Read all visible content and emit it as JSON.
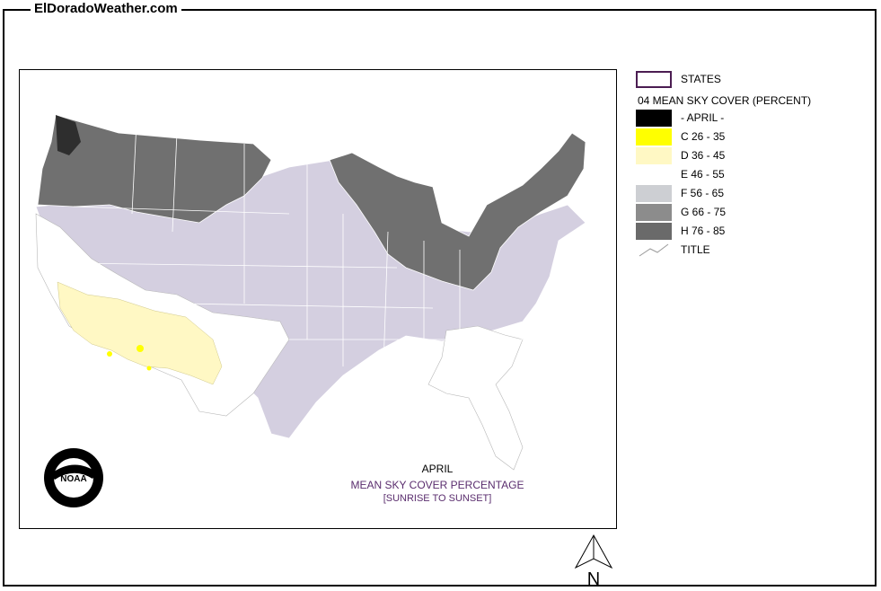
{
  "site": {
    "title": "ElDoradoWeather.com"
  },
  "map": {
    "caption_month": "APRIL",
    "caption_title": "MEAN SKY COVER PERCENTAGE",
    "caption_subtitle": "[SUNRISE TO SUNSET]",
    "logo_text": "NOAA",
    "north_label": "N"
  },
  "legend": {
    "states_label": "STATES",
    "heading": "04 MEAN SKY COVER (PERCENT)",
    "title_label": "TITLE",
    "classes": [
      {
        "label": "- APRIL -",
        "color": "#000000"
      },
      {
        "label": "C 26 - 35",
        "color": "#ffff00"
      },
      {
        "label": "D 36 - 45",
        "color": "#fff8c4"
      },
      {
        "label": "E 46 - 55",
        "color": "#ffffff"
      },
      {
        "label": "F 56 - 65",
        "color": "#cdcfd3"
      },
      {
        "label": "G 66 - 75",
        "color": "#8c8c8c"
      },
      {
        "label": "H 76 - 85",
        "color": "#6a6a6a"
      }
    ],
    "states_outline_color": "#4b1d52"
  }
}
